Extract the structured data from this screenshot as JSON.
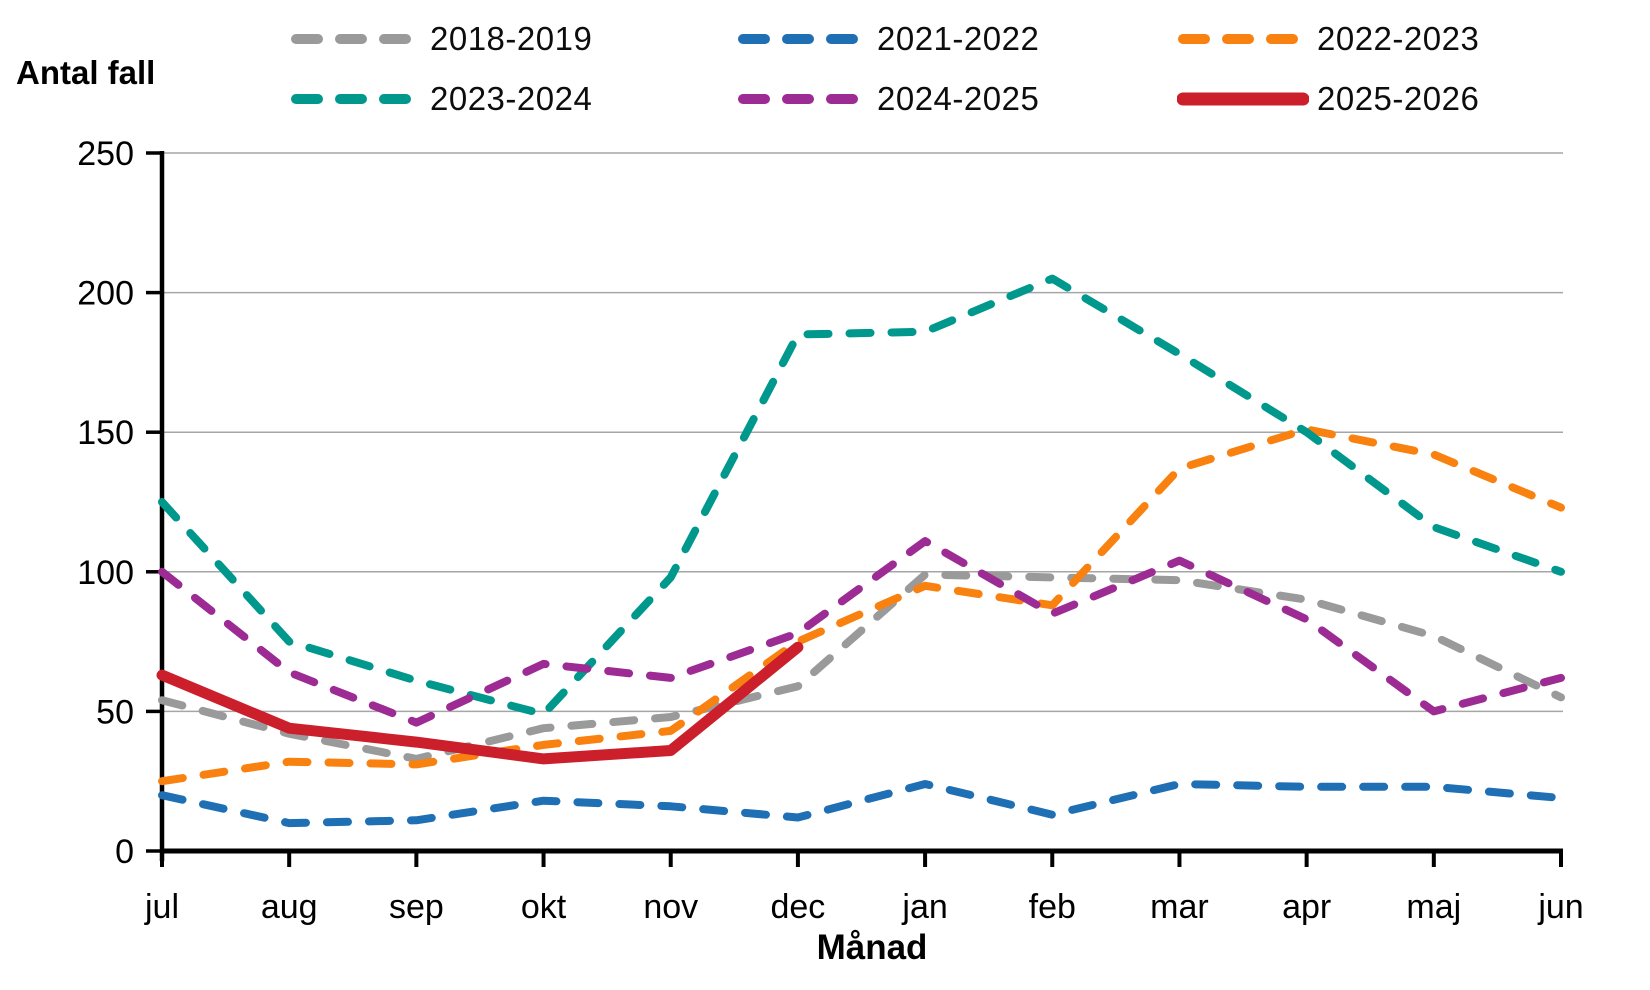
{
  "page": {
    "background": "#ffffff"
  },
  "chart_data": {
    "type": "line",
    "title": "Antal fall",
    "xlabel": "Månad",
    "ylim": [
      0,
      250
    ],
    "yticks": [
      0,
      50,
      100,
      150,
      200,
      250
    ],
    "grid": "horizontal",
    "gridline_color": "#a6a6a6",
    "axis_color": "#000000",
    "legend_position": "top",
    "categories": [
      "jul",
      "aug",
      "sep",
      "okt",
      "nov",
      "dec",
      "jan",
      "feb",
      "mar",
      "apr",
      "maj",
      "jun"
    ],
    "series": [
      {
        "name": "2018-2019",
        "color": "#9a9a9a",
        "style": "dashed",
        "values": [
          54,
          42,
          33,
          44,
          48,
          59,
          99,
          98,
          97,
          90,
          77,
          55
        ]
      },
      {
        "name": "2021-2022",
        "color": "#1f6fb4",
        "style": "dashed",
        "values": [
          20,
          10,
          11,
          18,
          16,
          12,
          24,
          13,
          24,
          23,
          23,
          19
        ]
      },
      {
        "name": "2022-2023",
        "color": "#f8810f",
        "style": "dashed",
        "values": [
          25,
          32,
          31,
          38,
          43,
          75,
          95,
          88,
          137,
          151,
          142,
          123
        ]
      },
      {
        "name": "2023-2024",
        "color": "#00988d",
        "style": "dashed",
        "values": [
          125,
          75,
          61,
          49,
          98,
          185,
          186,
          205,
          178,
          150,
          116,
          100
        ]
      },
      {
        "name": "2024-2025",
        "color": "#9c2b94",
        "style": "dashed",
        "values": [
          100,
          64,
          46,
          67,
          62,
          78,
          111,
          85,
          104,
          83,
          50,
          62
        ]
      },
      {
        "name": "2025-2026",
        "color": "#cc1f2c",
        "style": "solid",
        "values": [
          63,
          44,
          39,
          33,
          36,
          73,
          null,
          null,
          null,
          null,
          null,
          null
        ]
      }
    ]
  }
}
